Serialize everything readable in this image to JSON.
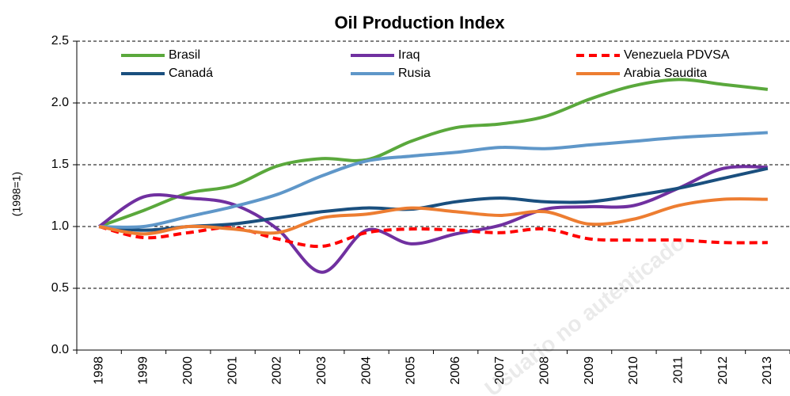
{
  "chart_data": {
    "type": "line",
    "title": "Oil Production Index",
    "y_label": "(1998=1)",
    "annotation": "Usuario no autenticado",
    "categories": [
      "1998",
      "1999",
      "2000",
      "2001",
      "2002",
      "2003",
      "2004",
      "2005",
      "2006",
      "2007",
      "2008",
      "2009",
      "2010",
      "2011",
      "2012",
      "2013"
    ],
    "series": [
      {
        "name": "Brasil",
        "color": "#5aa83c",
        "dashed": false,
        "values": [
          1.0,
          1.13,
          1.27,
          1.33,
          1.49,
          1.55,
          1.54,
          1.69,
          1.8,
          1.83,
          1.89,
          2.03,
          2.14,
          2.19,
          2.15,
          2.11
        ]
      },
      {
        "name": "Iraq",
        "color": "#7030a0",
        "dashed": false,
        "values": [
          1.0,
          1.24,
          1.23,
          1.18,
          0.98,
          0.63,
          0.97,
          0.86,
          0.94,
          1.01,
          1.14,
          1.16,
          1.17,
          1.31,
          1.47,
          1.48
        ]
      },
      {
        "name": "Venezuela PDVSA",
        "color": "#ff0000",
        "dashed": true,
        "values": [
          1.0,
          0.91,
          0.95,
          0.99,
          0.9,
          0.84,
          0.95,
          0.98,
          0.97,
          0.95,
          0.98,
          0.9,
          0.89,
          0.89,
          0.87,
          0.87
        ]
      },
      {
        "name": "Canadá",
        "color": "#1a4f7e",
        "dashed": false,
        "values": [
          1.0,
          0.97,
          1.0,
          1.02,
          1.07,
          1.12,
          1.15,
          1.14,
          1.2,
          1.23,
          1.2,
          1.2,
          1.25,
          1.31,
          1.39,
          1.47
        ]
      },
      {
        "name": "Rusia",
        "color": "#5f97c9",
        "dashed": false,
        "values": [
          1.0,
          1.0,
          1.08,
          1.16,
          1.26,
          1.41,
          1.53,
          1.57,
          1.6,
          1.64,
          1.63,
          1.66,
          1.69,
          1.72,
          1.74,
          1.76
        ]
      },
      {
        "name": "Arabia Saudita",
        "color": "#ed7d31",
        "dashed": false,
        "values": [
          1.0,
          0.94,
          1.0,
          0.98,
          0.95,
          1.07,
          1.1,
          1.15,
          1.12,
          1.09,
          1.12,
          1.02,
          1.06,
          1.17,
          1.22,
          1.22
        ]
      }
    ],
    "ylim": [
      0,
      2.5
    ],
    "yticks": [
      {
        "value": 0,
        "label": "0.0"
      },
      0.5,
      {
        "value": 1,
        "label": "1.0"
      },
      1.5,
      {
        "value": 2,
        "label": "2.0"
      },
      2.5
    ],
    "grid": true,
    "legend": "top"
  }
}
